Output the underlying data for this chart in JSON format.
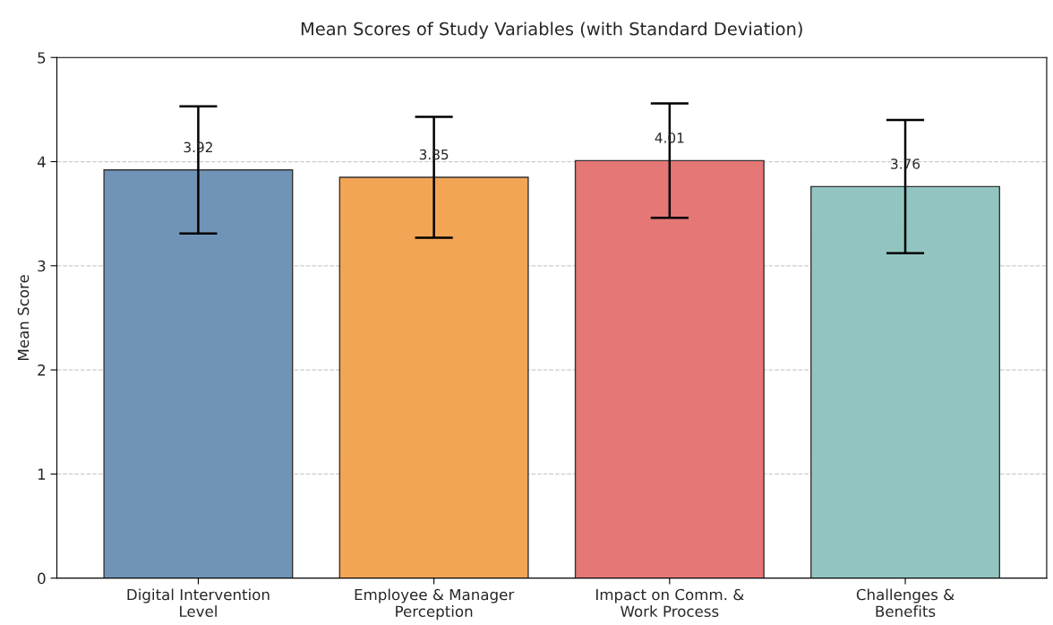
{
  "chart_data": {
    "type": "bar",
    "title": "Mean Scores of Study Variables (with Standard Deviation)",
    "ylabel": "Mean Score",
    "categories": [
      "Digital Intervention\nLevel",
      "Employee & Manager\nPerception",
      "Impact on Comm. &\nWork Process",
      "Challenges &\nBenefits"
    ],
    "values": [
      3.92,
      3.85,
      4.01,
      3.76
    ],
    "errors": [
      0.61,
      0.58,
      0.55,
      0.64
    ],
    "colors": [
      "#7094b8",
      "#f2a555",
      "#e57777",
      "#92c5c1"
    ],
    "ylim": [
      0,
      5
    ],
    "yticks": [
      0,
      1,
      2,
      3,
      4,
      5
    ],
    "grid": "y",
    "data_labels": true
  }
}
